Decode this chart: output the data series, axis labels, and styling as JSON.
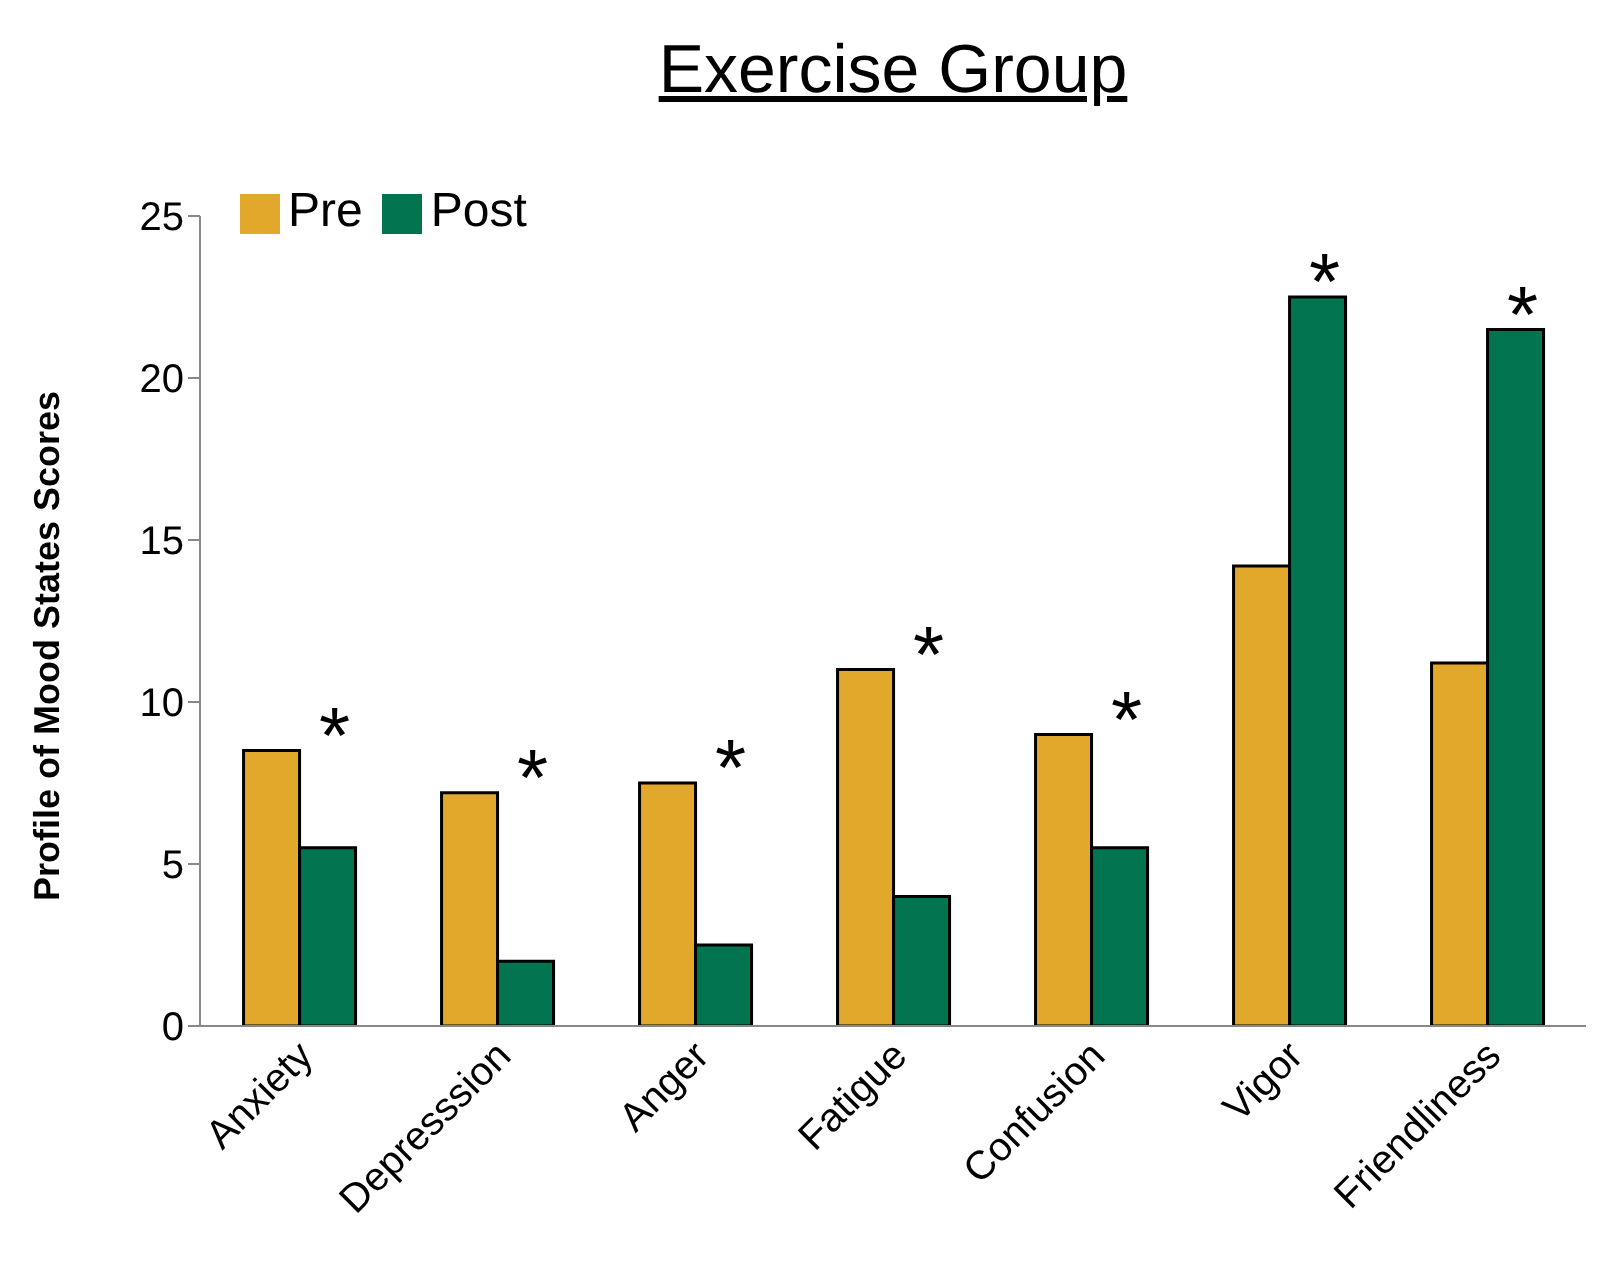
{
  "chart_data": {
    "type": "bar",
    "title": "Exercise Group",
    "ylabel": "Profile of Mood States Scores",
    "categories": [
      "Anxiety",
      "Depresssion",
      "Anger",
      "Fatigue",
      "Confusion",
      "Vigor",
      "Friendliness"
    ],
    "series": [
      {
        "name": "Pre",
        "color": "#e2a82c",
        "values": [
          8.5,
          7.2,
          7.5,
          11,
          9,
          14.2,
          11.2
        ]
      },
      {
        "name": "Post",
        "color": "#037450",
        "values": [
          5.5,
          2,
          2.5,
          4,
          5.5,
          22.5,
          21.5
        ]
      }
    ],
    "ylim": [
      0,
      25
    ],
    "yticks": [
      0,
      5,
      10,
      15,
      20,
      25
    ],
    "grid": false,
    "legend": "top left",
    "annotations": [
      "*",
      "*",
      "*",
      "*",
      "*",
      "*",
      "*"
    ]
  }
}
